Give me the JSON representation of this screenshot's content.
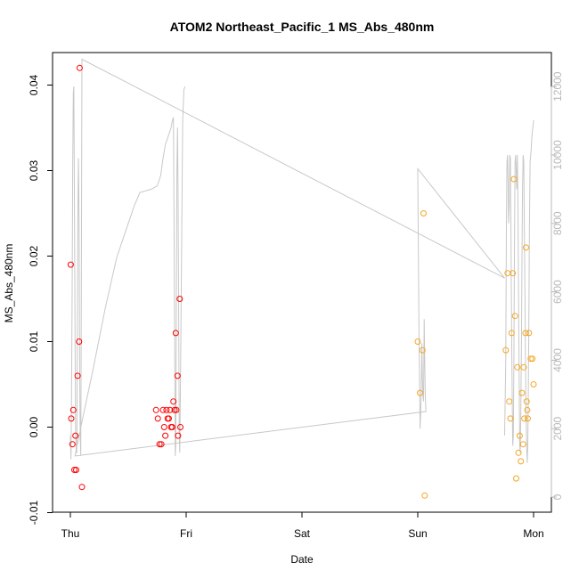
{
  "chart_data": {
    "type": "scatter",
    "title": "ATOM2 Northeast_Pacific_1 MS_Abs_480nm",
    "xlabel": "Date",
    "ylabel": "MS_Abs_480nm",
    "x_ticks": [
      "Thu",
      "Fri",
      "Sat",
      "Sun",
      "Mon"
    ],
    "x_range_days": [
      -0.1,
      4.1
    ],
    "ylim": [
      -0.01,
      0.04
    ],
    "y_ticks": [
      "-0.01",
      "0.00",
      "0.01",
      "0.02",
      "0.03",
      "0.04"
    ],
    "y_tick_values": [
      -0.01,
      0.0,
      0.01,
      0.02,
      0.03,
      0.04
    ],
    "y2_ticks": [
      "0",
      "2000",
      "4000",
      "6000",
      "8000",
      "10000",
      "12000"
    ],
    "y2_tick_values": [
      0,
      2000,
      4000,
      6000,
      8000,
      10000,
      12000
    ],
    "y2lim": [
      -400,
      13600
    ],
    "colors": {
      "red": "#ff0000",
      "orange": "#f5a623",
      "altitude": "#c8c8c8",
      "axis": "#000000",
      "right_axis": "#b8b8b8"
    },
    "series": [
      {
        "color": "#ff0000",
        "points": [
          [
            0.003,
            0.019
          ],
          [
            0.008,
            0.001
          ],
          [
            0.018,
            -0.002
          ],
          [
            0.025,
            0.002
          ],
          [
            0.035,
            -0.005
          ],
          [
            0.044,
            -0.001
          ],
          [
            0.05,
            -0.005
          ],
          [
            0.062,
            0.006
          ],
          [
            0.075,
            0.01
          ],
          [
            0.08,
            0.042
          ],
          [
            0.1,
            -0.007
          ],
          [
            0.74,
            0.002
          ],
          [
            0.755,
            0.001
          ],
          [
            0.77,
            -0.002
          ],
          [
            0.785,
            -0.002
          ],
          [
            0.8,
            0.002
          ],
          [
            0.81,
            0.0
          ],
          [
            0.82,
            -0.001
          ],
          [
            0.83,
            0.002
          ],
          [
            0.84,
            0.001
          ],
          [
            0.85,
            0.001
          ],
          [
            0.86,
            0.002
          ],
          [
            0.87,
            0.0
          ],
          [
            0.88,
            0.0
          ],
          [
            0.89,
            0.003
          ],
          [
            0.9,
            0.002
          ],
          [
            0.91,
            0.011
          ],
          [
            0.915,
            0.002
          ],
          [
            0.925,
            0.006
          ],
          [
            0.93,
            -0.001
          ],
          [
            0.945,
            0.015
          ],
          [
            0.95,
            0.0
          ]
        ]
      },
      {
        "color": "#f5a623",
        "points": [
          [
            3.0,
            0.01
          ],
          [
            3.02,
            0.004
          ],
          [
            3.04,
            0.009
          ],
          [
            3.05,
            0.025
          ],
          [
            3.06,
            -0.008
          ],
          [
            3.76,
            0.009
          ],
          [
            3.775,
            0.018
          ],
          [
            3.79,
            0.003
          ],
          [
            3.8,
            0.001
          ],
          [
            3.81,
            0.011
          ],
          [
            3.82,
            0.018
          ],
          [
            3.83,
            0.029
          ],
          [
            3.84,
            0.013
          ],
          [
            3.85,
            -0.006
          ],
          [
            3.86,
            0.007
          ],
          [
            3.87,
            -0.003
          ],
          [
            3.88,
            -0.001
          ],
          [
            3.89,
            -0.004
          ],
          [
            3.9,
            0.004
          ],
          [
            3.91,
            -0.002
          ],
          [
            3.915,
            0.007
          ],
          [
            3.92,
            0.001
          ],
          [
            3.93,
            0.011
          ],
          [
            3.935,
            0.021
          ],
          [
            3.94,
            0.003
          ],
          [
            3.945,
            0.002
          ],
          [
            3.95,
            0.001
          ],
          [
            3.96,
            0.011
          ],
          [
            3.975,
            0.008
          ],
          [
            3.99,
            0.008
          ],
          [
            4.0,
            0.005
          ]
        ]
      }
    ],
    "altitude_series": {
      "color": "#c8c8c8",
      "points": [
        [
          0.0,
          1800
        ],
        [
          0.005,
          1100
        ],
        [
          0.01,
          3000
        ],
        [
          0.015,
          6000
        ],
        [
          0.02,
          9500
        ],
        [
          0.025,
          11800
        ],
        [
          0.03,
          12000
        ],
        [
          0.035,
          9000
        ],
        [
          0.04,
          5000
        ],
        [
          0.045,
          2000
        ],
        [
          0.05,
          1300
        ],
        [
          0.055,
          1300
        ],
        [
          0.06,
          4500
        ],
        [
          0.065,
          8500
        ],
        [
          0.07,
          9900
        ],
        [
          0.075,
          8000
        ],
        [
          0.08,
          4000
        ],
        [
          0.085,
          1800
        ],
        [
          0.09,
          1200
        ],
        [
          0.095,
          6000
        ],
        [
          0.1,
          12800
        ],
        [
          3.75,
          6400
        ],
        [
          3.0,
          9600
        ],
        [
          3.0,
          9500
        ],
        [
          3.01,
          5000
        ],
        [
          3.02,
          2000
        ],
        [
          3.025,
          2500
        ],
        [
          3.03,
          3000
        ],
        [
          3.035,
          4500
        ],
        [
          3.04,
          3500
        ],
        [
          3.045,
          3000
        ],
        [
          3.05,
          2800
        ],
        [
          3.055,
          5200
        ],
        [
          3.06,
          4000
        ],
        [
          3.065,
          3000
        ],
        [
          3.07,
          2500
        ],
        [
          0.04,
          1200
        ],
        [
          0.1,
          2200
        ],
        [
          0.2,
          3800
        ],
        [
          0.3,
          5500
        ],
        [
          0.4,
          7000
        ],
        [
          0.5,
          8000
        ],
        [
          0.55,
          8500
        ],
        [
          0.6,
          8900
        ],
        [
          0.7,
          9000
        ],
        [
          0.75,
          9100
        ],
        [
          0.78,
          9400
        ],
        [
          0.8,
          9900
        ],
        [
          0.82,
          10300
        ],
        [
          0.84,
          10500
        ],
        [
          0.86,
          10700
        ],
        [
          0.87,
          10800
        ],
        [
          0.88,
          11000
        ],
        [
          0.89,
          11100
        ],
        [
          0.895,
          8000
        ],
        [
          0.9,
          5000
        ],
        [
          0.905,
          1200
        ],
        [
          0.91,
          1500
        ],
        [
          0.915,
          5000
        ],
        [
          0.92,
          9500
        ],
        [
          0.925,
          10800
        ],
        [
          0.93,
          9000
        ],
        [
          0.935,
          5500
        ],
        [
          0.94,
          2000
        ],
        [
          0.945,
          1300
        ],
        [
          0.95,
          3000
        ],
        [
          0.96,
          7000
        ],
        [
          0.97,
          11000
        ],
        [
          0.98,
          11900
        ],
        [
          0.99,
          12000
        ]
      ]
    },
    "altitude_series_mon": {
      "color": "#c8c8c8",
      "points": [
        [
          3.75,
          1800
        ],
        [
          3.76,
          4000
        ],
        [
          3.765,
          8000
        ],
        [
          3.77,
          9800
        ],
        [
          3.775,
          10000
        ],
        [
          3.78,
          9200
        ],
        [
          3.785,
          8000
        ],
        [
          3.79,
          8500
        ],
        [
          3.795,
          10000
        ],
        [
          3.8,
          9900
        ],
        [
          3.805,
          7500
        ],
        [
          3.81,
          5000
        ],
        [
          3.815,
          3000
        ],
        [
          3.82,
          1500
        ],
        [
          3.825,
          1800
        ],
        [
          3.83,
          4000
        ],
        [
          3.835,
          7000
        ],
        [
          3.84,
          9800
        ],
        [
          3.845,
          10000
        ],
        [
          3.85,
          9500
        ],
        [
          3.855,
          9000
        ],
        [
          3.86,
          10000
        ],
        [
          3.865,
          8500
        ],
        [
          3.87,
          6000
        ],
        [
          3.875,
          3500
        ],
        [
          3.88,
          1500
        ],
        [
          3.885,
          1300
        ],
        [
          3.89,
          2500
        ],
        [
          3.895,
          4500
        ],
        [
          3.9,
          7000
        ],
        [
          3.905,
          9000
        ],
        [
          3.91,
          10000
        ],
        [
          3.915,
          9800
        ],
        [
          3.92,
          8000
        ],
        [
          3.925,
          6000
        ],
        [
          3.93,
          4000
        ],
        [
          3.935,
          2500
        ],
        [
          3.94,
          1500
        ],
        [
          3.945,
          1000
        ],
        [
          3.95,
          1500
        ],
        [
          3.955,
          3000
        ],
        [
          3.96,
          5500
        ],
        [
          3.965,
          8000
        ],
        [
          3.97,
          9800
        ],
        [
          3.975,
          10000
        ],
        [
          3.98,
          10200
        ],
        [
          3.985,
          10500
        ],
        [
          3.99,
          10700
        ],
        [
          4.0,
          11000
        ],
        [
          4.005,
          11000
        ]
      ]
    }
  }
}
